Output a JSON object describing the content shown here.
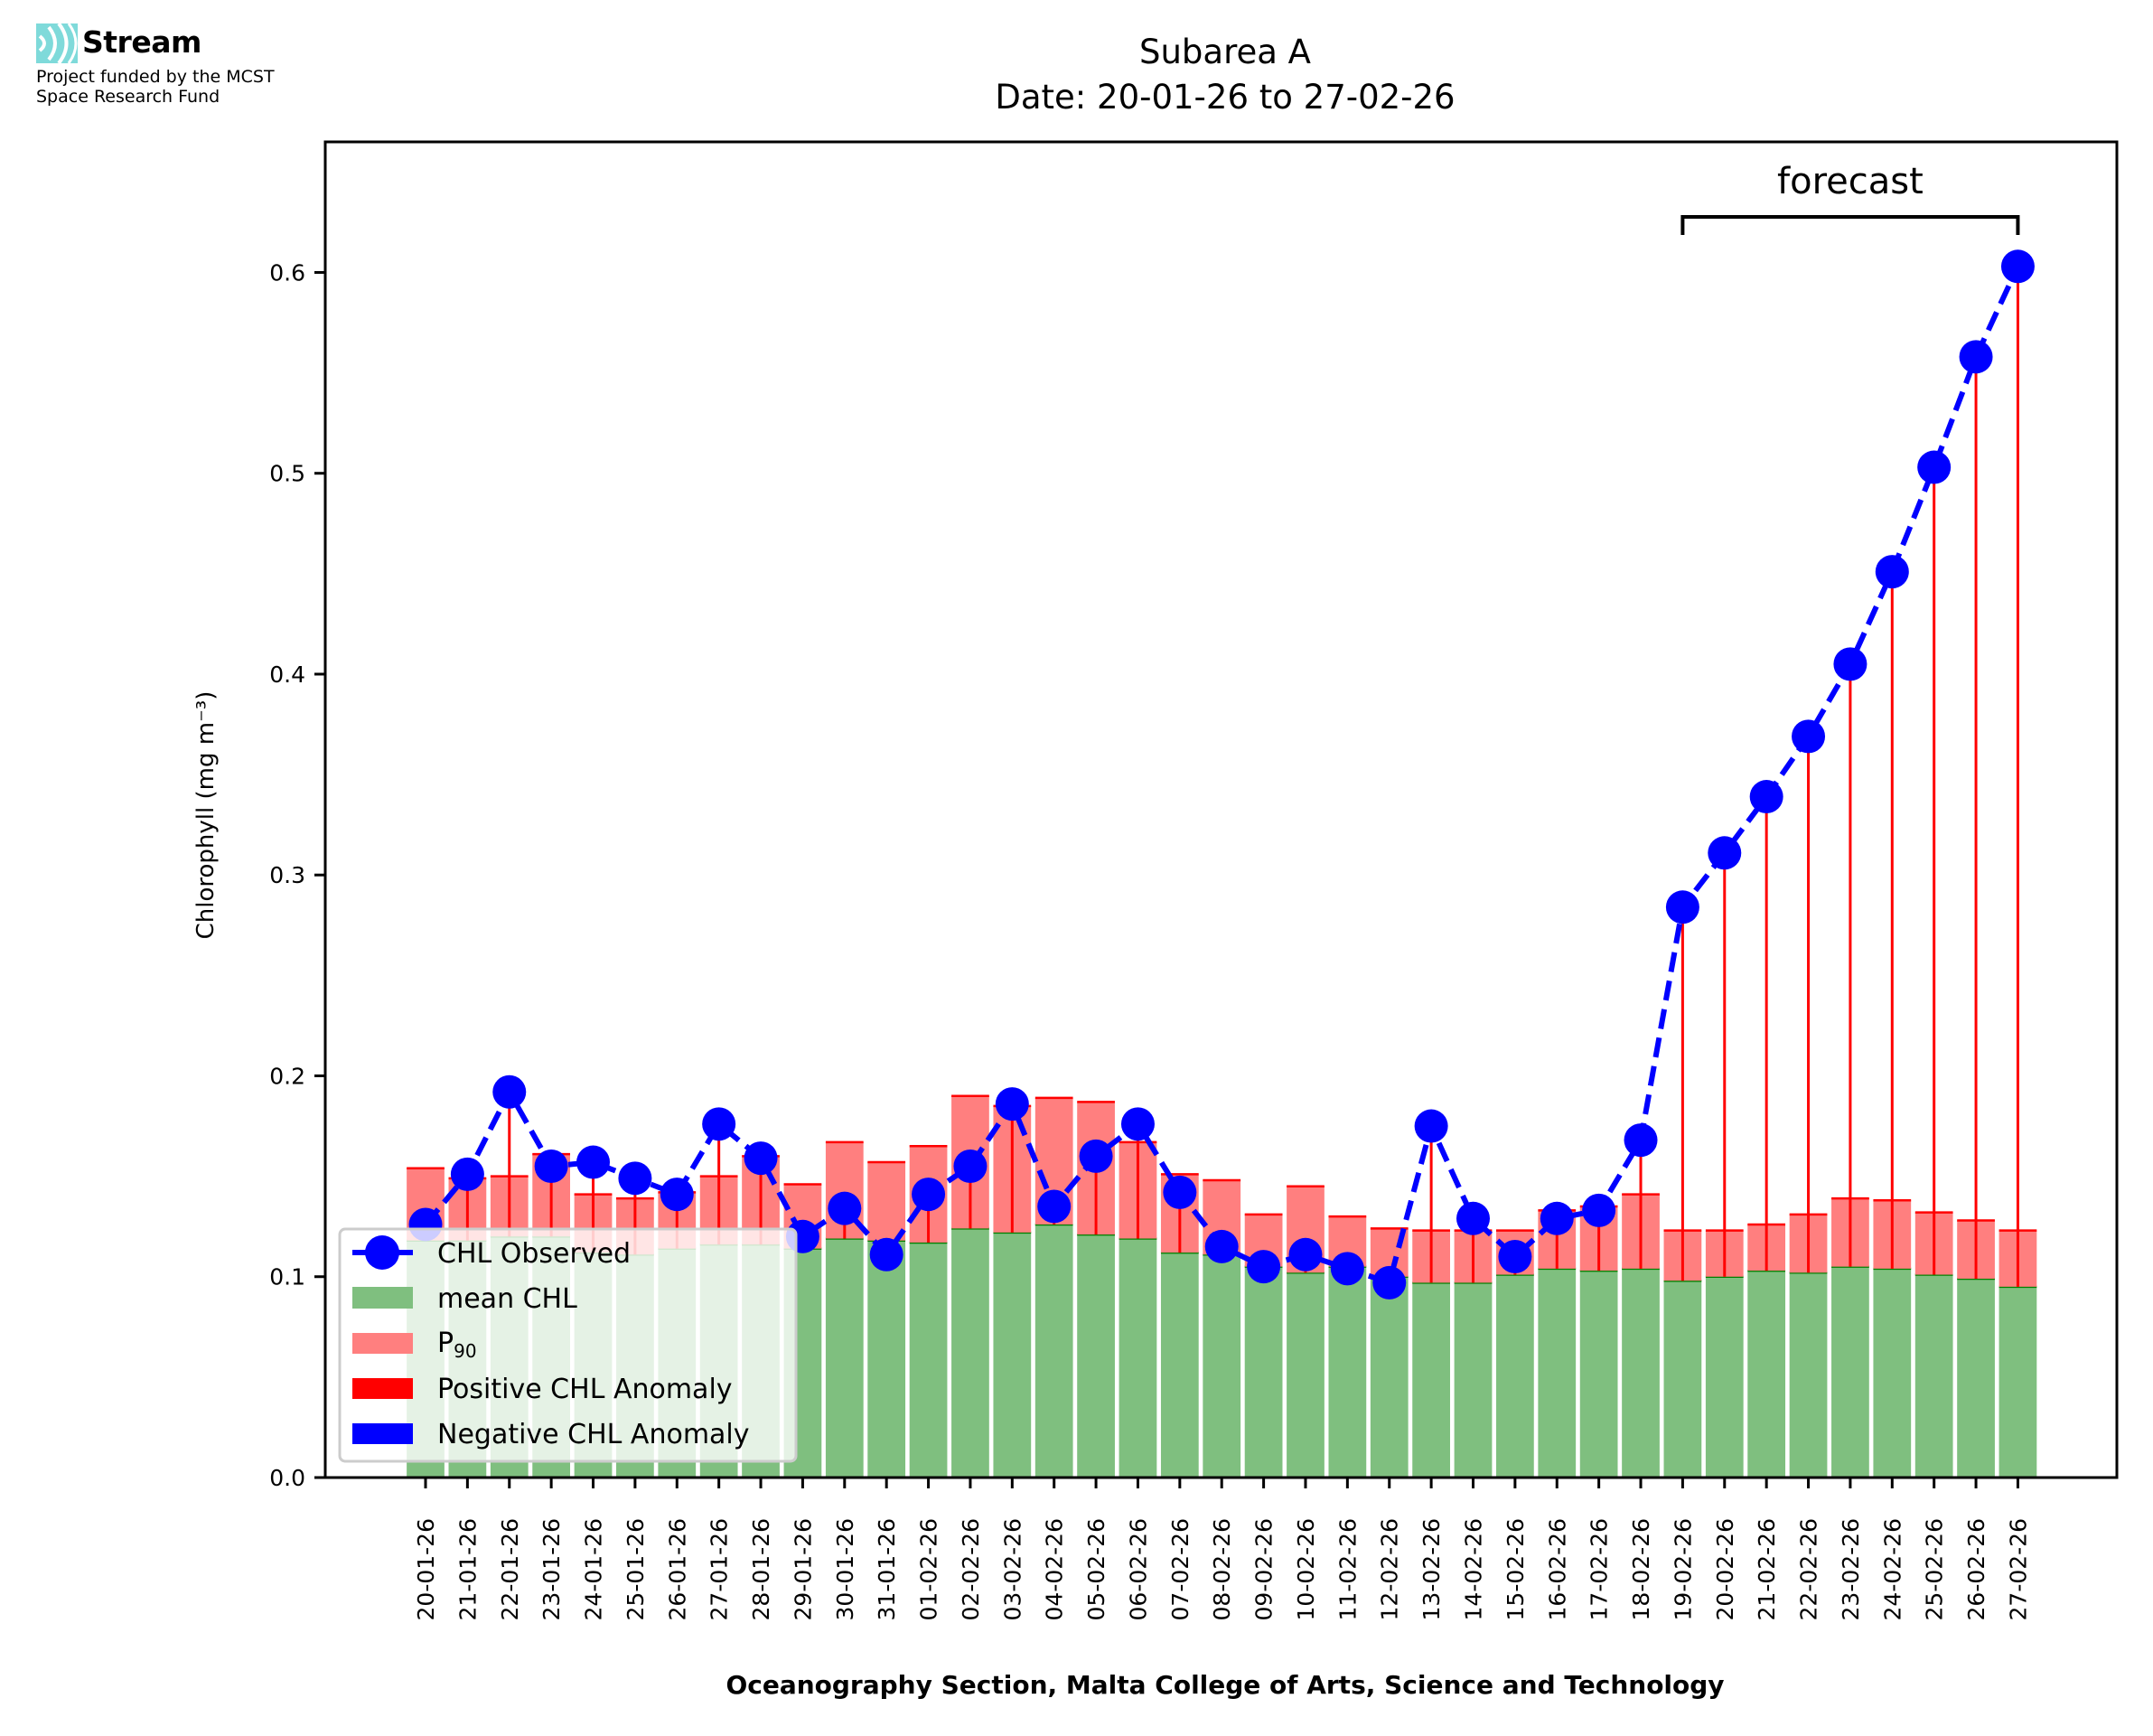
{
  "logo": {
    "name": "Stream",
    "icon": "stream-waves-icon",
    "funding_line1": "Project funded by the MCST",
    "funding_line2": "Space Research Fund",
    "accent_color": "#7fdada"
  },
  "chart_data": {
    "type": "bar",
    "title": "Subarea A",
    "subtitle": "Date: 20-01-26 to 27-02-26",
    "xlabel": "Oceanography Section, Malta College of Arts, Science and Technology",
    "ylabel": "Chlorophyll (mg m⁻³)",
    "ylim": [
      0,
      0.665
    ],
    "yticks": [
      0.0,
      0.1,
      0.2,
      0.3,
      0.4,
      0.5,
      0.6
    ],
    "ytick_labels": [
      "0.0",
      "0.1",
      "0.2",
      "0.3",
      "0.4",
      "0.5",
      "0.6"
    ],
    "grid": false,
    "categories": [
      "20-01-26",
      "21-01-26",
      "22-01-26",
      "23-01-26",
      "24-01-26",
      "25-01-26",
      "26-01-26",
      "27-01-26",
      "28-01-26",
      "29-01-26",
      "30-01-26",
      "31-01-26",
      "01-02-26",
      "02-02-26",
      "03-02-26",
      "04-02-26",
      "05-02-26",
      "06-02-26",
      "07-02-26",
      "08-02-26",
      "09-02-26",
      "10-02-26",
      "11-02-26",
      "12-02-26",
      "13-02-26",
      "14-02-26",
      "15-02-26",
      "16-02-26",
      "17-02-26",
      "18-02-26",
      "19-02-26",
      "20-02-26",
      "21-02-26",
      "22-02-26",
      "23-02-26",
      "24-02-26",
      "25-02-26",
      "26-02-26",
      "27-02-26"
    ],
    "series": [
      {
        "name": "CHL Observed",
        "kind": "line-dashed-markers",
        "color": "#0000ff",
        "values": [
          0.126,
          0.151,
          0.192,
          0.155,
          0.157,
          0.149,
          0.141,
          0.176,
          0.159,
          0.12,
          0.134,
          0.111,
          0.141,
          0.155,
          0.186,
          0.135,
          0.16,
          0.176,
          0.142,
          0.115,
          0.105,
          0.111,
          0.104,
          0.097,
          0.175,
          0.129,
          0.11,
          0.129,
          0.133,
          0.168,
          0.284,
          0.311,
          0.339,
          0.369,
          0.405,
          0.451,
          0.503,
          0.558,
          0.603
        ]
      },
      {
        "name": "mean CHL",
        "kind": "bar",
        "color": "#7fbf7f",
        "edge_color": "#008000",
        "values": [
          0.118,
          0.118,
          0.12,
          0.12,
          0.112,
          0.111,
          0.114,
          0.116,
          0.116,
          0.114,
          0.119,
          0.118,
          0.117,
          0.124,
          0.122,
          0.126,
          0.121,
          0.119,
          0.112,
          0.111,
          0.105,
          0.102,
          0.105,
          0.1,
          0.097,
          0.097,
          0.101,
          0.104,
          0.103,
          0.104,
          0.098,
          0.1,
          0.103,
          0.102,
          0.105,
          0.104,
          0.101,
          0.099,
          0.095
        ]
      },
      {
        "name": "P₉₀",
        "legend_base": "P",
        "legend_sub": "90",
        "kind": "bar",
        "color": "#ff7f7f",
        "edge_color": "#ff0000",
        "values": [
          0.154,
          0.149,
          0.15,
          0.161,
          0.141,
          0.139,
          0.142,
          0.15,
          0.16,
          0.146,
          0.167,
          0.157,
          0.165,
          0.19,
          0.185,
          0.189,
          0.187,
          0.167,
          0.151,
          0.148,
          0.131,
          0.145,
          0.13,
          0.124,
          0.123,
          0.123,
          0.123,
          0.133,
          0.135,
          0.141,
          0.123,
          0.123,
          0.126,
          0.131,
          0.139,
          0.138,
          0.132,
          0.128,
          0.123
        ]
      }
    ],
    "anomaly_legend": [
      {
        "name": "Positive CHL Anomaly",
        "color": "#ff0000"
      },
      {
        "name": "Negative CHL Anomaly",
        "color": "#0000ff"
      }
    ],
    "legend_position": "lower-left",
    "annotation": {
      "text": "forecast",
      "from_category": "19-02-26",
      "to_category": "27-02-26"
    }
  }
}
